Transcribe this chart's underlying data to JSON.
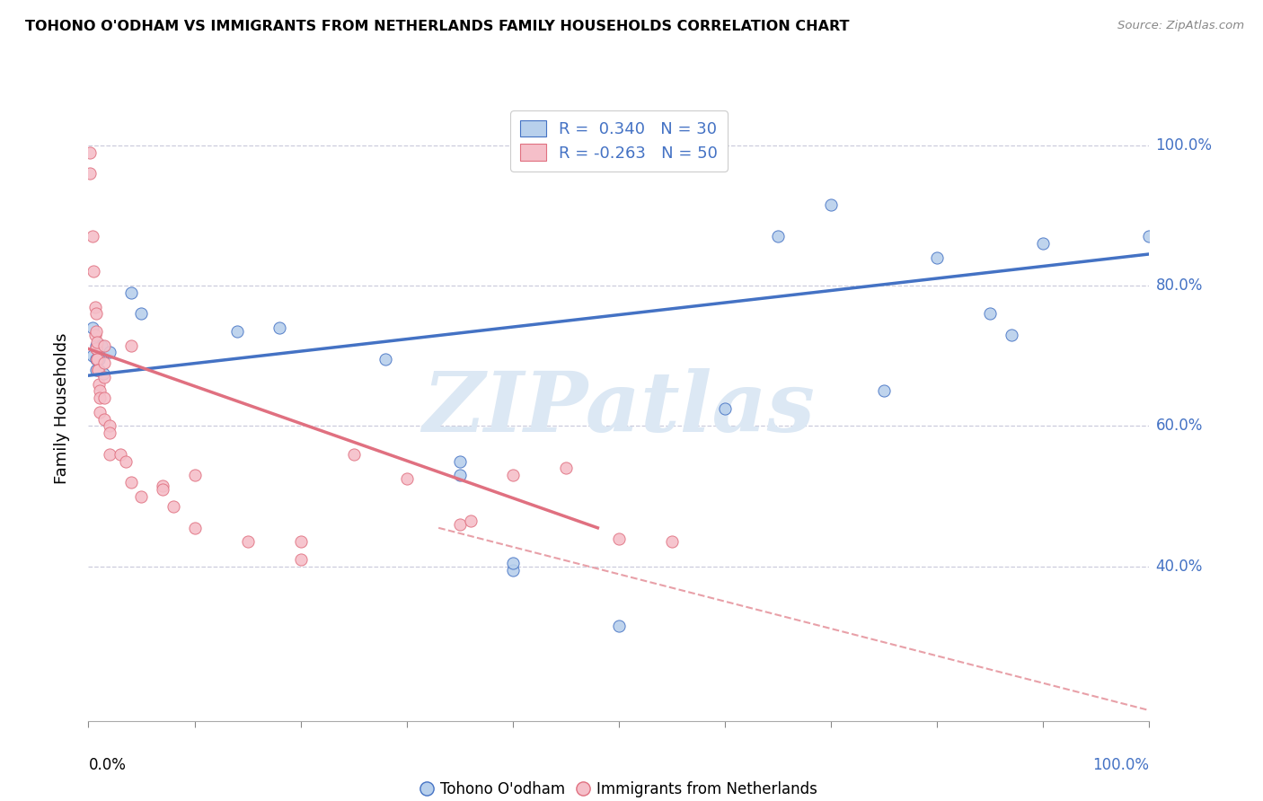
{
  "title": "TOHONO O'ODHAM VS IMMIGRANTS FROM NETHERLANDS FAMILY HOUSEHOLDS CORRELATION CHART",
  "source": "Source: ZipAtlas.com",
  "ylabel": "Family Households",
  "y_ticks_labels": [
    "40.0%",
    "60.0%",
    "80.0%",
    "100.0%"
  ],
  "y_tick_vals": [
    0.4,
    0.6,
    0.8,
    1.0
  ],
  "xlim": [
    0.0,
    1.0
  ],
  "ylim": [
    0.18,
    1.07
  ],
  "blue_color": "#b8d0ec",
  "pink_color": "#f5bfc9",
  "blue_line_color": "#4472c4",
  "pink_line_color": "#e07080",
  "dashed_line_color": "#e8a0a8",
  "watermark": "ZIPatlas",
  "watermark_color": "#dce8f4",
  "blue_points": [
    [
      0.004,
      0.7
    ],
    [
      0.004,
      0.74
    ],
    [
      0.007,
      0.715
    ],
    [
      0.007,
      0.695
    ],
    [
      0.007,
      0.68
    ],
    [
      0.01,
      0.68
    ],
    [
      0.01,
      0.695
    ],
    [
      0.012,
      0.715
    ],
    [
      0.014,
      0.675
    ],
    [
      0.02,
      0.705
    ],
    [
      0.04,
      0.79
    ],
    [
      0.05,
      0.76
    ],
    [
      0.14,
      0.735
    ],
    [
      0.18,
      0.74
    ],
    [
      0.28,
      0.695
    ],
    [
      0.35,
      0.55
    ],
    [
      0.35,
      0.53
    ],
    [
      0.4,
      0.395
    ],
    [
      0.4,
      0.405
    ],
    [
      0.5,
      0.315
    ],
    [
      0.6,
      0.625
    ],
    [
      0.65,
      0.87
    ],
    [
      0.7,
      0.915
    ],
    [
      0.75,
      0.65
    ],
    [
      0.8,
      0.84
    ],
    [
      0.85,
      0.76
    ],
    [
      0.87,
      0.73
    ],
    [
      0.9,
      0.86
    ],
    [
      1.0,
      0.87
    ]
  ],
  "pink_points": [
    [
      0.001,
      0.96
    ],
    [
      0.001,
      0.99
    ],
    [
      0.004,
      0.87
    ],
    [
      0.005,
      0.82
    ],
    [
      0.006,
      0.77
    ],
    [
      0.006,
      0.73
    ],
    [
      0.007,
      0.76
    ],
    [
      0.007,
      0.735
    ],
    [
      0.007,
      0.71
    ],
    [
      0.007,
      0.71
    ],
    [
      0.008,
      0.72
    ],
    [
      0.008,
      0.695
    ],
    [
      0.008,
      0.695
    ],
    [
      0.009,
      0.68
    ],
    [
      0.009,
      0.68
    ],
    [
      0.01,
      0.66
    ],
    [
      0.011,
      0.65
    ],
    [
      0.011,
      0.64
    ],
    [
      0.011,
      0.62
    ],
    [
      0.015,
      0.715
    ],
    [
      0.015,
      0.69
    ],
    [
      0.015,
      0.67
    ],
    [
      0.015,
      0.64
    ],
    [
      0.015,
      0.61
    ],
    [
      0.02,
      0.6
    ],
    [
      0.02,
      0.59
    ],
    [
      0.02,
      0.56
    ],
    [
      0.03,
      0.56
    ],
    [
      0.035,
      0.55
    ],
    [
      0.04,
      0.715
    ],
    [
      0.04,
      0.52
    ],
    [
      0.05,
      0.5
    ],
    [
      0.07,
      0.515
    ],
    [
      0.07,
      0.51
    ],
    [
      0.08,
      0.485
    ],
    [
      0.1,
      0.455
    ],
    [
      0.1,
      0.53
    ],
    [
      0.15,
      0.435
    ],
    [
      0.2,
      0.435
    ],
    [
      0.2,
      0.41
    ],
    [
      0.25,
      0.56
    ],
    [
      0.3,
      0.525
    ],
    [
      0.35,
      0.46
    ],
    [
      0.36,
      0.465
    ],
    [
      0.4,
      0.53
    ],
    [
      0.45,
      0.54
    ],
    [
      0.5,
      0.44
    ],
    [
      0.55,
      0.435
    ]
  ],
  "blue_line_x": [
    0.0,
    1.0
  ],
  "blue_line_y": [
    0.672,
    0.845
  ],
  "pink_line_x": [
    0.0,
    0.48
  ],
  "pink_line_y": [
    0.71,
    0.455
  ],
  "dashed_line_x": [
    0.33,
    1.0
  ],
  "dashed_line_y": [
    0.455,
    0.195
  ]
}
